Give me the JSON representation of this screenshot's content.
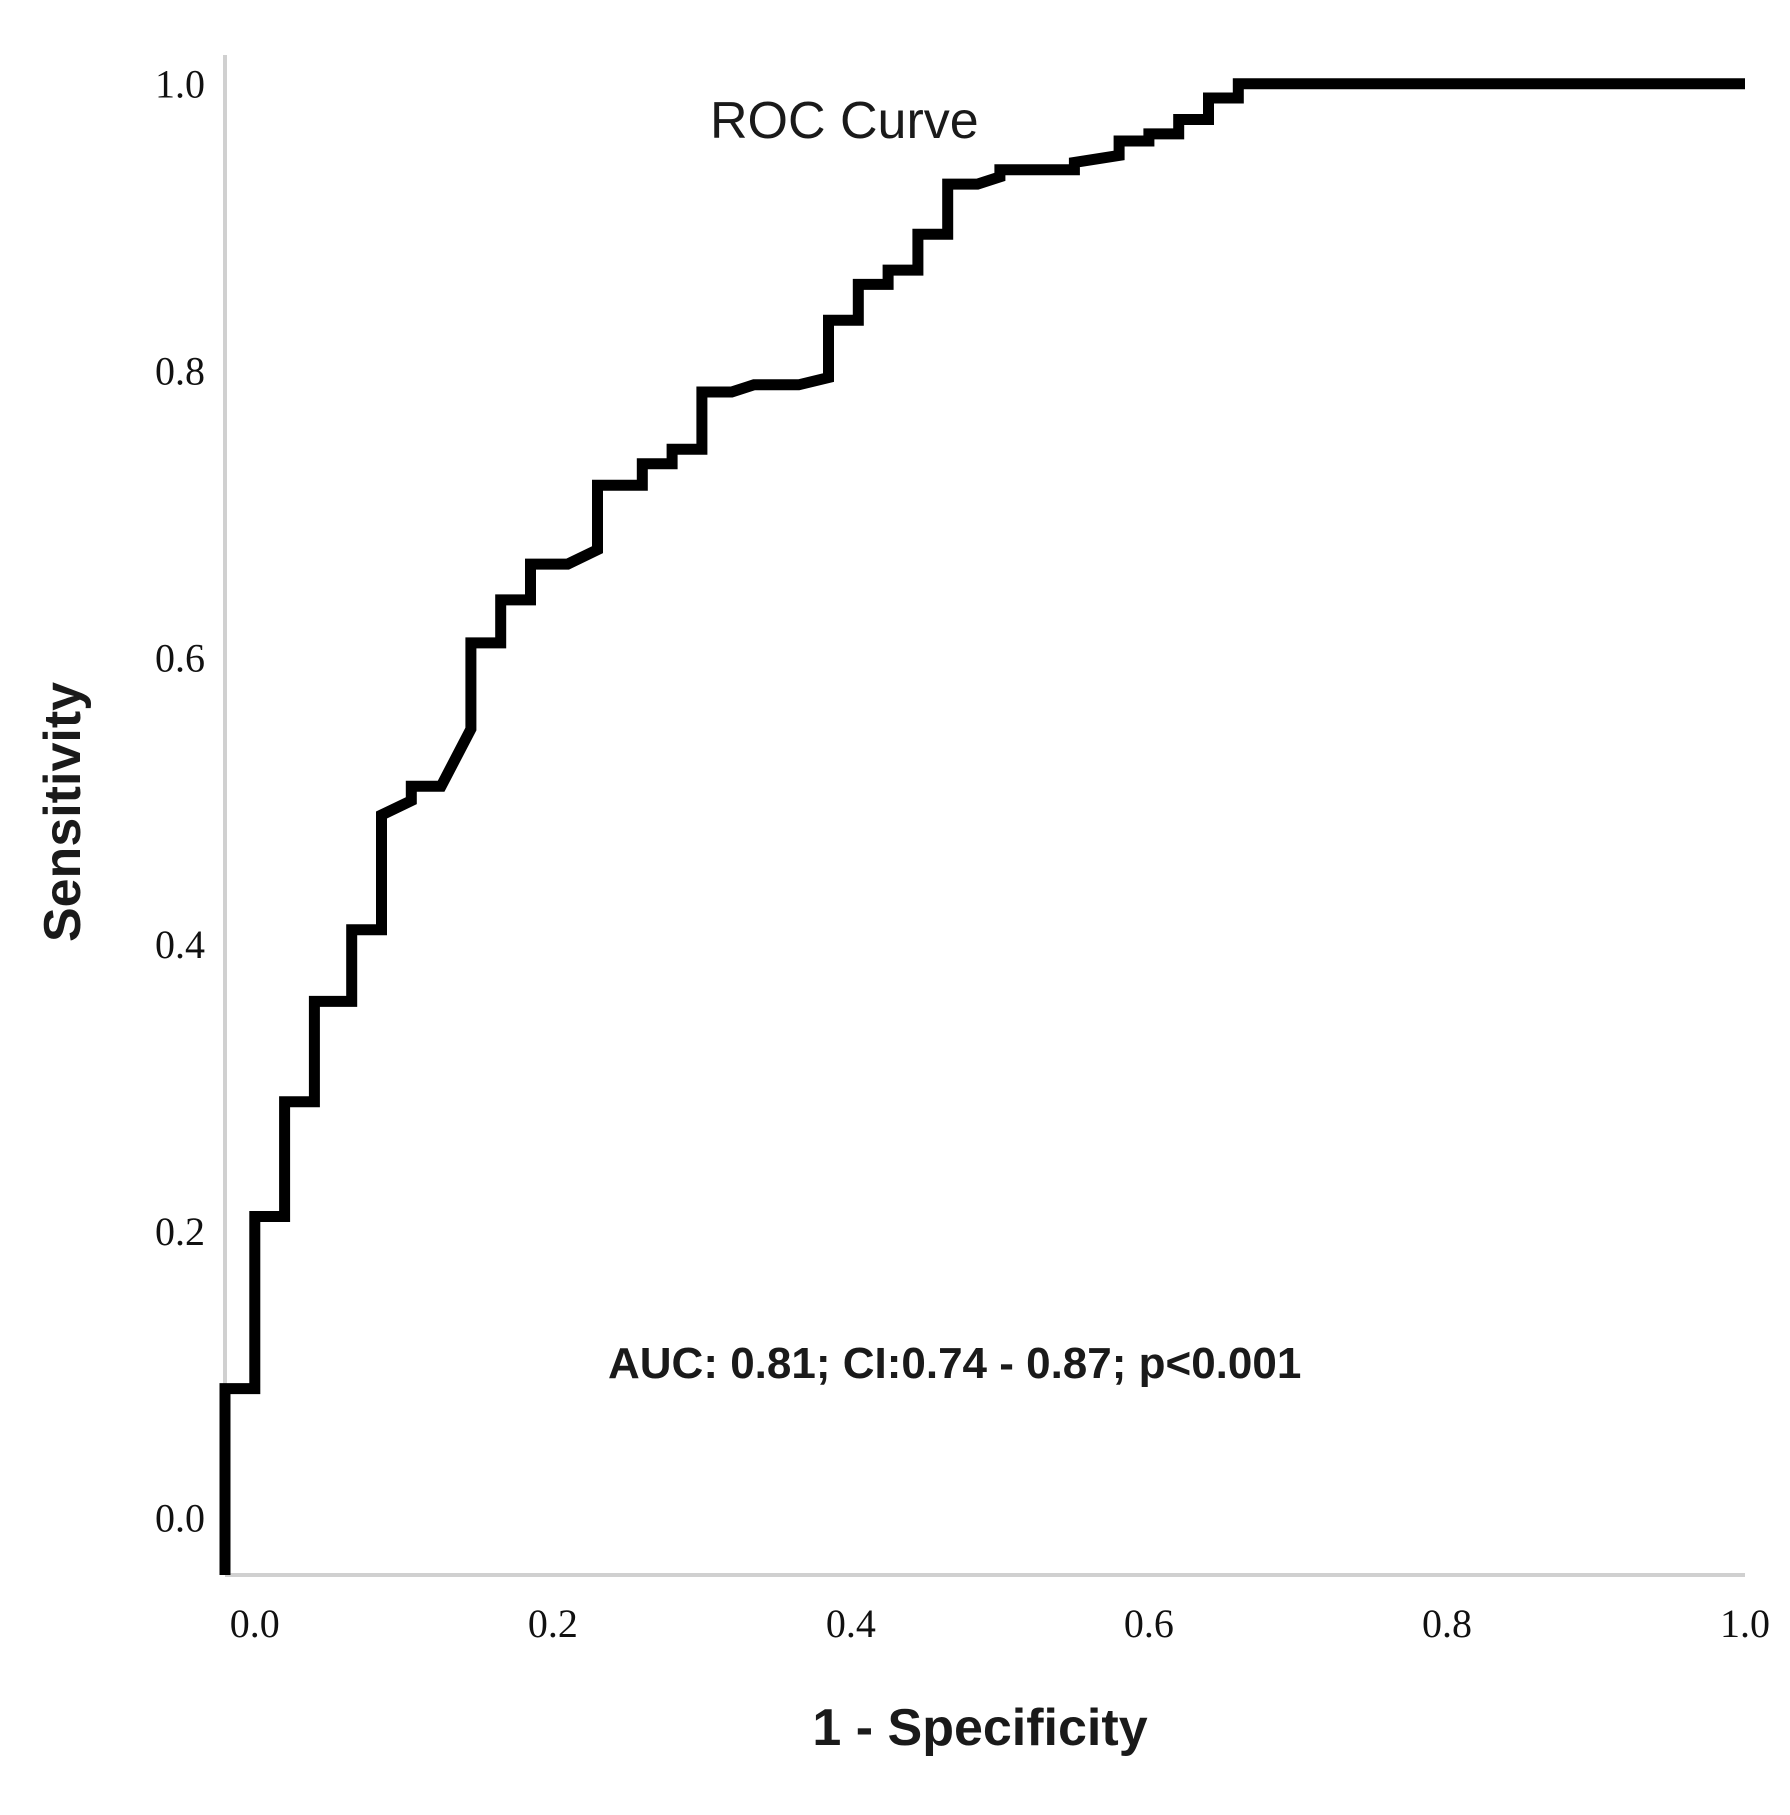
{
  "chart_data": {
    "type": "line",
    "title": "ROC Curve",
    "xlabel": "1 - Specificity",
    "ylabel": "Sensitivity",
    "xlim": [
      -0.02,
      1.0
    ],
    "ylim": [
      -0.04,
      1.02
    ],
    "x_ticks": [
      0.0,
      0.2,
      0.4,
      0.6,
      0.8,
      1.0
    ],
    "x_tick_labels": [
      "0.0",
      "0.2",
      "0.4",
      "0.6",
      "0.8",
      "1.0"
    ],
    "y_ticks": [
      0.0,
      0.2,
      0.4,
      0.6,
      0.8,
      1.0
    ],
    "y_tick_labels": [
      "0.0",
      "0.2",
      "0.4",
      "0.6",
      "0.8",
      "1.0"
    ],
    "grid": false,
    "annotation": "AUC: 0.81; CI:0.74 - 0.87; p<0.001",
    "series": [
      {
        "name": "ROC",
        "color": "#000000",
        "points": [
          [
            -0.02,
            -0.04
          ],
          [
            -0.02,
            0.09
          ],
          [
            0.0,
            0.09
          ],
          [
            0.0,
            0.21
          ],
          [
            0.02,
            0.21
          ],
          [
            0.02,
            0.29
          ],
          [
            0.04,
            0.29
          ],
          [
            0.04,
            0.36
          ],
          [
            0.065,
            0.36
          ],
          [
            0.065,
            0.41
          ],
          [
            0.085,
            0.41
          ],
          [
            0.085,
            0.49
          ],
          [
            0.105,
            0.5
          ],
          [
            0.105,
            0.51
          ],
          [
            0.125,
            0.51
          ],
          [
            0.145,
            0.55
          ],
          [
            0.145,
            0.61
          ],
          [
            0.165,
            0.61
          ],
          [
            0.165,
            0.64
          ],
          [
            0.185,
            0.64
          ],
          [
            0.185,
            0.665
          ],
          [
            0.21,
            0.665
          ],
          [
            0.23,
            0.675
          ],
          [
            0.23,
            0.72
          ],
          [
            0.26,
            0.72
          ],
          [
            0.26,
            0.735
          ],
          [
            0.28,
            0.735
          ],
          [
            0.28,
            0.745
          ],
          [
            0.3,
            0.745
          ],
          [
            0.3,
            0.785
          ],
          [
            0.32,
            0.785
          ],
          [
            0.335,
            0.79
          ],
          [
            0.365,
            0.79
          ],
          [
            0.385,
            0.795
          ],
          [
            0.385,
            0.835
          ],
          [
            0.405,
            0.835
          ],
          [
            0.405,
            0.86
          ],
          [
            0.425,
            0.86
          ],
          [
            0.425,
            0.87
          ],
          [
            0.445,
            0.87
          ],
          [
            0.445,
            0.895
          ],
          [
            0.465,
            0.895
          ],
          [
            0.465,
            0.93
          ],
          [
            0.485,
            0.93
          ],
          [
            0.5,
            0.935
          ],
          [
            0.5,
            0.94
          ],
          [
            0.55,
            0.94
          ],
          [
            0.55,
            0.945
          ],
          [
            0.58,
            0.95
          ],
          [
            0.58,
            0.96
          ],
          [
            0.6,
            0.96
          ],
          [
            0.6,
            0.965
          ],
          [
            0.62,
            0.965
          ],
          [
            0.62,
            0.975
          ],
          [
            0.64,
            0.975
          ],
          [
            0.64,
            0.99
          ],
          [
            0.66,
            0.99
          ],
          [
            0.66,
            1.0
          ],
          [
            0.72,
            1.0
          ],
          [
            1.0,
            1.0
          ]
        ]
      }
    ]
  }
}
